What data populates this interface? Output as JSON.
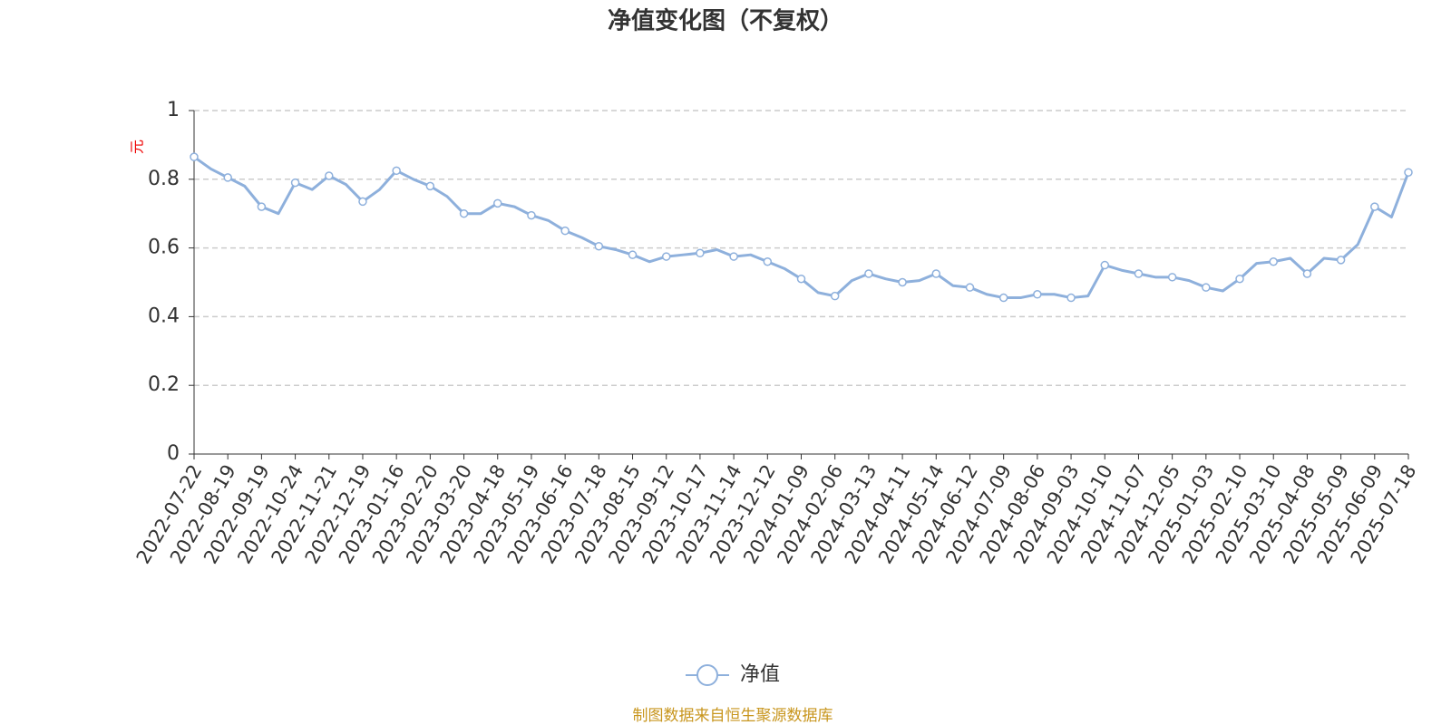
{
  "chart_data": {
    "type": "line",
    "title": "净值变化图（不复权）",
    "y_label": "元",
    "source": "制图数据来自恒生聚源数据库",
    "categories": [
      "2022-07-22",
      null,
      "2022-08-19",
      null,
      "2022-09-19",
      null,
      "2022-10-24",
      null,
      "2022-11-21",
      null,
      "2022-12-19",
      null,
      "2023-01-16",
      null,
      "2023-02-20",
      null,
      "2023-03-20",
      null,
      "2023-04-18",
      null,
      "2023-05-19",
      null,
      "2023-06-16",
      null,
      "2023-07-18",
      null,
      "2023-08-15",
      null,
      "2023-09-12",
      null,
      "2023-10-17",
      null,
      "2023-11-14",
      null,
      "2023-12-12",
      null,
      "2024-01-09",
      null,
      "2024-02-06",
      null,
      "2024-03-13",
      null,
      "2024-04-11",
      null,
      "2024-05-14",
      null,
      "2024-06-12",
      null,
      "2024-07-09",
      null,
      "2024-08-06",
      null,
      "2024-09-03",
      null,
      "2024-10-10",
      null,
      "2024-11-07",
      null,
      "2024-12-05",
      null,
      "2025-01-03",
      null,
      "2025-02-10",
      null,
      "2025-03-10",
      null,
      "2025-04-08",
      null,
      "2025-05-09",
      null,
      "2025-06-09",
      null,
      "2025-07-18"
    ],
    "series": [
      {
        "name": "净值",
        "color": "#8eb0dc",
        "values": [
          0.865,
          0.83,
          0.805,
          0.78,
          0.72,
          0.7,
          0.79,
          0.77,
          0.81,
          0.785,
          0.735,
          0.77,
          0.825,
          0.8,
          0.78,
          0.75,
          0.7,
          0.7,
          0.73,
          0.72,
          0.695,
          0.68,
          0.65,
          0.63,
          0.605,
          0.595,
          0.58,
          0.56,
          0.575,
          0.58,
          0.585,
          0.595,
          0.575,
          0.58,
          0.56,
          0.54,
          0.51,
          0.47,
          0.46,
          0.505,
          0.525,
          0.51,
          0.5,
          0.505,
          0.525,
          0.49,
          0.485,
          0.465,
          0.455,
          0.455,
          0.465,
          0.465,
          0.455,
          0.46,
          0.55,
          0.535,
          0.525,
          0.515,
          0.515,
          0.505,
          0.485,
          0.475,
          0.51,
          0.555,
          0.56,
          0.57,
          0.525,
          0.57,
          0.565,
          0.61,
          0.72,
          0.69,
          0.82
        ]
      }
    ],
    "ylim": [
      0,
      1
    ],
    "yticks": [
      0,
      0.2,
      0.4,
      0.6,
      0.8,
      1
    ],
    "grid": true
  }
}
